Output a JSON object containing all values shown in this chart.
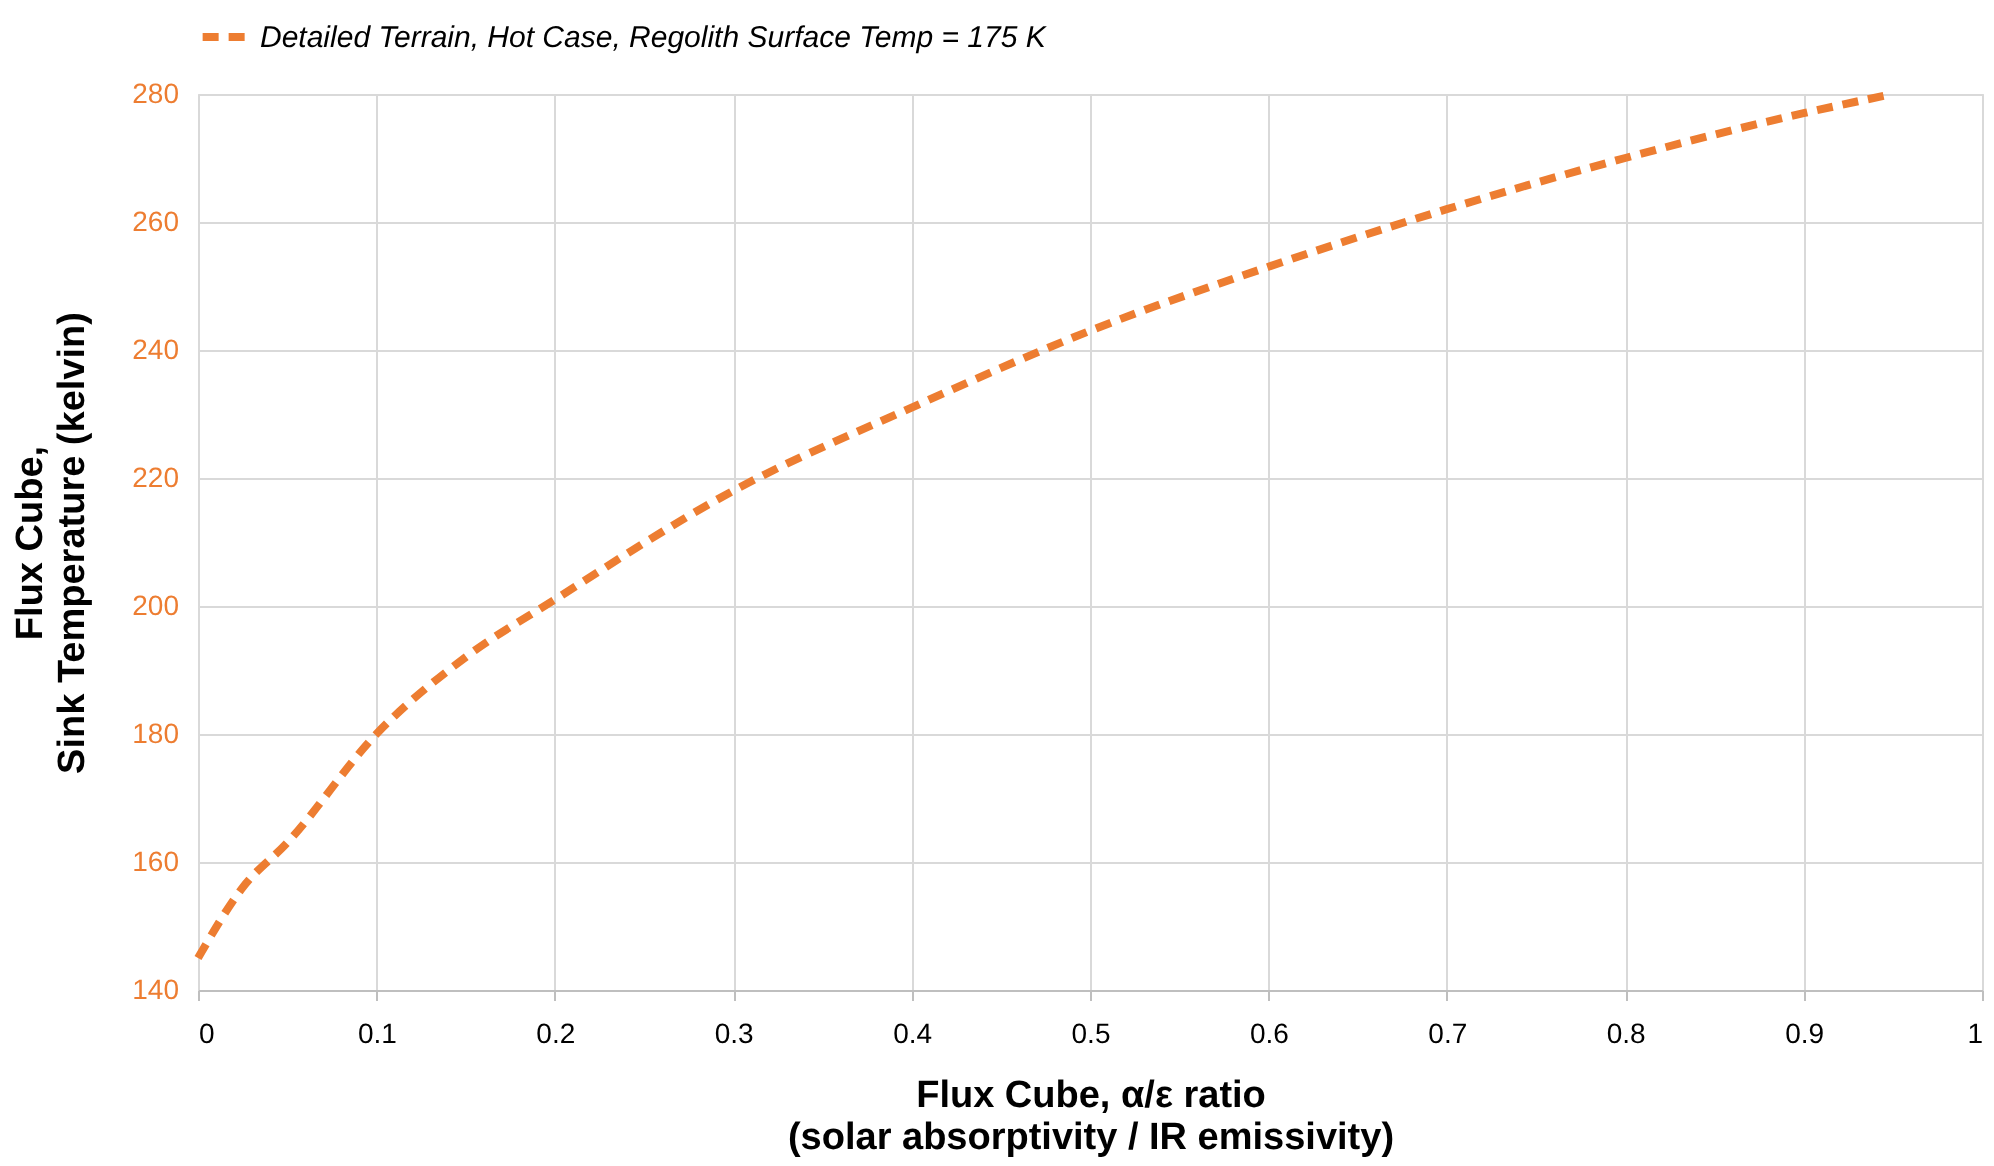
{
  "chart_data": {
    "type": "line",
    "xlabel": "Flux Cube, α/ε ratio\n(solar absorptivity / IR emissivity)",
    "ylabel": "Flux Cube,\nSink Temperature (kelvin)",
    "x": [
      0,
      0.025,
      0.05,
      0.1,
      0.15,
      0.2,
      0.3,
      0.4,
      0.5,
      0.6,
      0.7,
      0.8,
      0.9,
      0.95
    ],
    "series": [
      {
        "name": "Detailed Terrain, Hot Case, Regolith Surface Temp = 175 K",
        "color": "#ed7d31",
        "values": [
          145,
          156,
          163,
          180,
          192,
          201,
          218,
          231,
          243,
          253,
          262,
          270,
          277,
          280
        ]
      }
    ],
    "xlim": [
      0,
      1
    ],
    "xticks": [
      0,
      0.1,
      0.2,
      0.3,
      0.4,
      0.5,
      0.6,
      0.7,
      0.8,
      0.9,
      1
    ],
    "ylim": [
      140,
      280
    ],
    "yticks": [
      140,
      160,
      180,
      200,
      220,
      240,
      260,
      280
    ],
    "grid": true,
    "legend": "top",
    "line_style": "dashed",
    "marker": "none"
  }
}
